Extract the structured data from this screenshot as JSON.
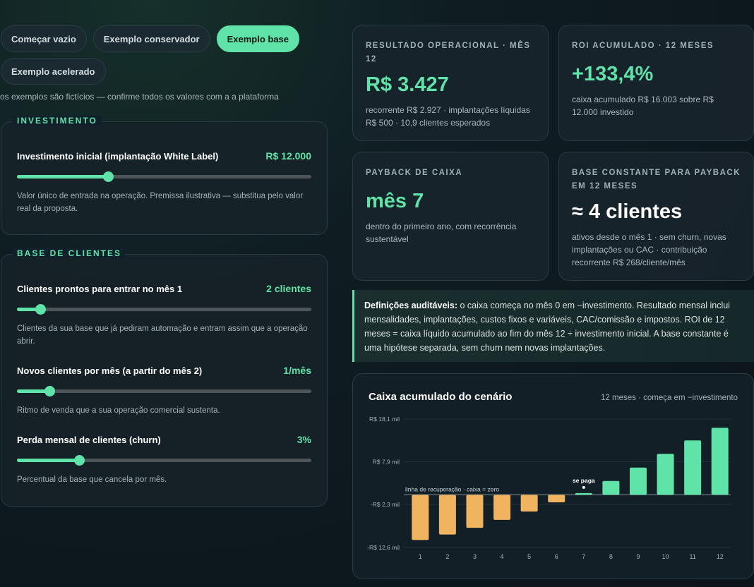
{
  "presets": [
    "Começar vazio",
    "Exemplo conservador",
    "Exemplo base",
    "Exemplo acelerado"
  ],
  "disclaimer": "os exemplos são fictícios — confirme todos os valores com a a plataforma",
  "investment": {
    "section": "INVESTIMENTO",
    "label": "Investimento inicial (implantação White Label)",
    "value": "R$ 12.000",
    "fraction": 0.31,
    "help": "Valor único de entrada na operação. Premissa ilustrativa — substitua pelo valor real da proposta."
  },
  "clients": {
    "section": "BASE DE CLIENTES",
    "ready": {
      "label": "Clientes prontos para entrar no mês 1",
      "value": "2 clientes",
      "fraction": 0.08,
      "help": "Clientes da sua base que já pediram automação e entram assim que a operação abrir."
    },
    "new": {
      "label": "Novos clientes por mês (a partir do mês 2)",
      "value": "1/mês",
      "fraction": 0.11,
      "help": "Ritmo de venda que a sua operação comercial sustenta."
    },
    "churn": {
      "label": "Perda mensal de clientes (churn)",
      "value": "3%",
      "fraction": 0.21,
      "help": "Percentual da base que cancela por mês."
    }
  },
  "cards": {
    "result": {
      "title": "RESULTADO OPERACIONAL · MÊS 12",
      "value": "R$ 3.427",
      "desc": "recorrente R$ 2.927 · implantações líquidas R$ 500 · 10,9 clientes esperados"
    },
    "roi": {
      "title": "ROI ACUMULADO · 12 MESES",
      "value": "+133,4%",
      "desc": "caixa acumulado R$ 16.003 sobre R$ 12.000 investido"
    },
    "payback": {
      "title": "PAYBACK DE CAIXA",
      "value": "mês 7",
      "desc": "dentro do primeiro ano, com recorrência sustentável"
    },
    "base": {
      "title": "BASE CONSTANTE PARA PAYBACK EM 12 MESES",
      "value": "≈ 4 clientes",
      "desc": "ativos desde o mês 1 · sem churn, novas implantações ou CAC · contribuição recorrente R$ 268/cliente/mês"
    }
  },
  "definition": {
    "lead": "Definições auditáveis:",
    "text": " o caixa começa no mês 0 em −investimento. Resultado mensal inclui mensalidades, implantações, custos fixos e variáveis, CAC/comissão e impostos. ROI de 12 meses = caixa líquido acumulado ao fim do mês 12 ÷ investimento inicial. A base constante é uma hipótese separada, sem churn nem novas implantações."
  },
  "chart": {
    "title": "Caixa acumulado do cenário",
    "subtitle": "12 meses · começa em −investimento",
    "zero_label": "linha de recuperação · caixa = zero",
    "payback_label": "se paga",
    "colors": {
      "positive": "#5fe3a8",
      "negative": "#f0b461"
    }
  },
  "chart_data": {
    "type": "bar",
    "categories": [
      "1",
      "2",
      "3",
      "4",
      "5",
      "6",
      "7",
      "8",
      "9",
      "10",
      "11",
      "12"
    ],
    "values": [
      -10800,
      -9500,
      -7900,
      -6000,
      -4000,
      -1800,
      400,
      3300,
      6500,
      9800,
      13000,
      16003
    ],
    "ytick_values": [
      18100,
      7900,
      -2300,
      -12600
    ],
    "ytick_labels": [
      "R$ 18,1 mil",
      "R$ 7,9 mil",
      "-R$ 2,3 mil",
      "-R$ 12,6 mil"
    ],
    "ylim": [
      -12600,
      18100
    ],
    "payback_month": "7"
  }
}
